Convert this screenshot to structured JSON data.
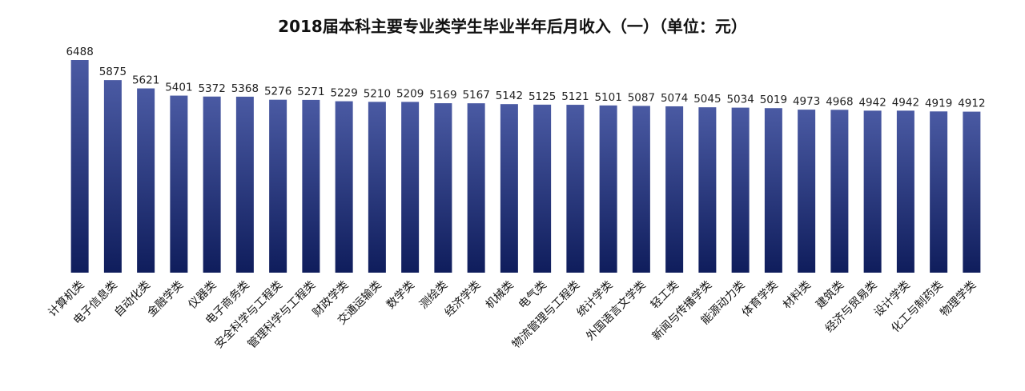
{
  "chart_data": {
    "type": "bar",
    "title": "2018届本科主要专业类学生毕业半年后月收入（一）（单位：元）",
    "xlabel": "",
    "ylabel": "",
    "ylim": [
      0,
      6488
    ],
    "grid": false,
    "legend": "none",
    "bar_color_top": "#4a5aa3",
    "bar_color_bottom": "#0f1d5c",
    "categories": [
      "计算机类",
      "电子信息类",
      "自动化类",
      "金融学类",
      "仪器类",
      "电子商务类",
      "安全科学与工程类",
      "管理科学与工程类",
      "财政学类",
      "交通运输类",
      "数学类",
      "测绘类",
      "经济学类",
      "机械类",
      "电气类",
      "物流管理与工程类",
      "统计学类",
      "外国语言文学类",
      "轻工类",
      "新闻与传播学类",
      "能源动力类",
      "体育学类",
      "材料类",
      "建筑类",
      "经济与贸易类",
      "设计学类",
      "化工与制药类",
      "物理学类"
    ],
    "values": [
      6488,
      5875,
      5621,
      5401,
      5372,
      5368,
      5276,
      5271,
      5229,
      5210,
      5209,
      5169,
      5167,
      5142,
      5125,
      5121,
      5101,
      5087,
      5074,
      5045,
      5034,
      5019,
      4973,
      4968,
      4942,
      4942,
      4919,
      4912
    ]
  }
}
